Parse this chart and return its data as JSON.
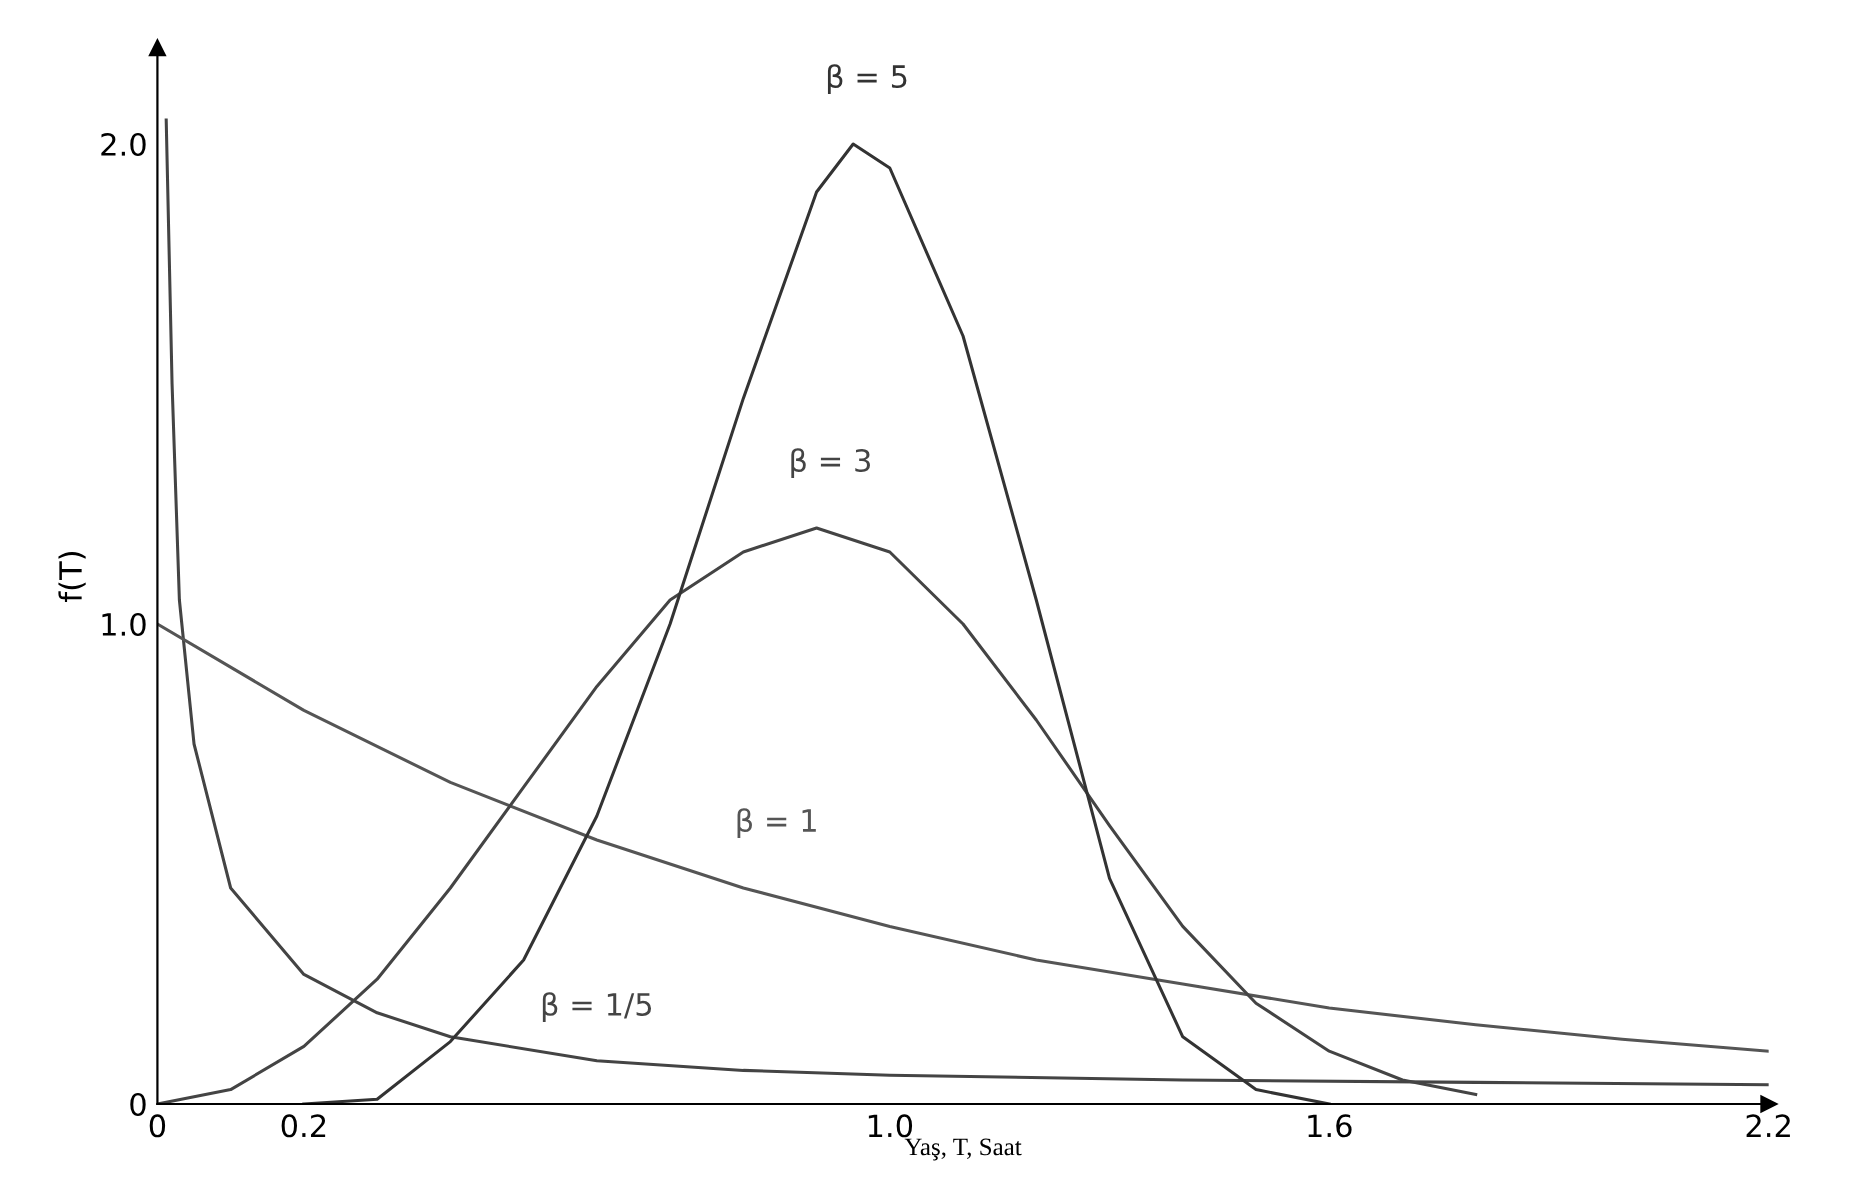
{
  "chart_data": {
    "type": "line",
    "xlabel": "Yaş, T, Saat",
    "ylabel": "f(T)",
    "xlim": [
      0,
      2.2
    ],
    "ylim": [
      0,
      2.2
    ],
    "xticks": [
      0,
      0.2,
      {
        "value": 1.0,
        "label": "1.0"
      },
      1.6,
      2.2
    ],
    "yticks": [
      0,
      {
        "value": 1.0,
        "label": "1.0"
      },
      {
        "value": 2.0,
        "label": "2.0"
      }
    ],
    "grid": false,
    "legend": false,
    "marker": "none",
    "line_style": "solid",
    "series": [
      {
        "name": "β = 1/5",
        "color": "#444444",
        "x": [
          0.012,
          0.02,
          0.03,
          0.05,
          0.1,
          0.2,
          0.3,
          0.4,
          0.6,
          0.8,
          1.0,
          1.4,
          1.8,
          2.2
        ],
        "values": [
          2.05,
          1.5,
          1.05,
          0.75,
          0.45,
          0.27,
          0.19,
          0.14,
          0.09,
          0.07,
          0.06,
          0.05,
          0.045,
          0.04
        ]
      },
      {
        "name": "β = 1",
        "color": "#555555",
        "x": [
          0,
          0.2,
          0.4,
          0.6,
          0.8,
          1.0,
          1.2,
          1.4,
          1.6,
          1.8,
          2.0,
          2.2
        ],
        "values": [
          1.0,
          0.82,
          0.67,
          0.55,
          0.45,
          0.37,
          0.3,
          0.25,
          0.2,
          0.165,
          0.135,
          0.11
        ]
      },
      {
        "name": "β = 3",
        "color": "#444444",
        "x": [
          0,
          0.1,
          0.2,
          0.3,
          0.4,
          0.5,
          0.6,
          0.7,
          0.8,
          0.9,
          1.0,
          1.1,
          1.2,
          1.3,
          1.4,
          1.5,
          1.6,
          1.7,
          1.8
        ],
        "values": [
          0,
          0.03,
          0.12,
          0.26,
          0.45,
          0.66,
          0.87,
          1.05,
          1.15,
          1.2,
          1.15,
          1.0,
          0.8,
          0.58,
          0.37,
          0.21,
          0.11,
          0.05,
          0.02
        ]
      },
      {
        "name": "β = 5",
        "color": "#333333",
        "x": [
          0.2,
          0.3,
          0.4,
          0.5,
          0.6,
          0.7,
          0.8,
          0.9,
          0.95,
          1.0,
          1.1,
          1.2,
          1.3,
          1.4,
          1.5,
          1.6
        ],
        "values": [
          0,
          0.01,
          0.13,
          0.3,
          0.6,
          1.0,
          1.47,
          1.9,
          2.0,
          1.95,
          1.6,
          1.05,
          0.47,
          0.14,
          0.03,
          0
        ]
      }
    ]
  }
}
